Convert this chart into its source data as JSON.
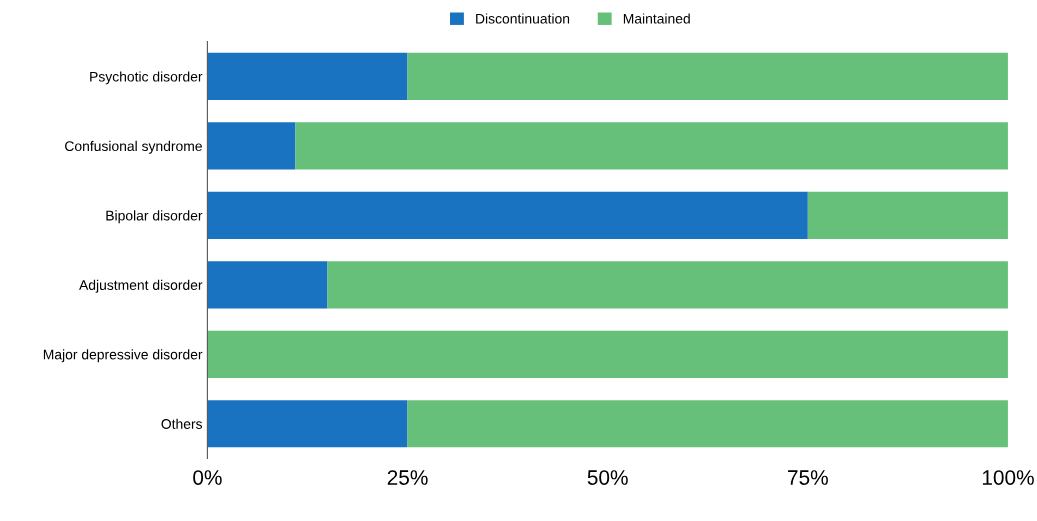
{
  "chart_data": {
    "type": "bar",
    "orientation": "horizontal",
    "stacked": true,
    "categories": [
      "Psychotic disorder",
      "Confusional syndrome",
      "Bipolar disorder",
      "Adjustment disorder",
      "Major depressive disorder",
      "Others"
    ],
    "series": [
      {
        "name": "Discontinuation",
        "color": "#1a73c1",
        "values": [
          25,
          11,
          75,
          15,
          0,
          25
        ]
      },
      {
        "name": "Maintained",
        "color": "#66c07a",
        "values": [
          75,
          89,
          25,
          85,
          100,
          75
        ]
      }
    ],
    "xlim": [
      0,
      100
    ],
    "xticks": [
      {
        "value": 0,
        "label": "0%"
      },
      {
        "value": 25,
        "label": "25%"
      },
      {
        "value": 50,
        "label": "50%"
      },
      {
        "value": 75,
        "label": "75%"
      },
      {
        "value": 100,
        "label": "100%"
      }
    ],
    "grid": false,
    "legend": "top"
  }
}
